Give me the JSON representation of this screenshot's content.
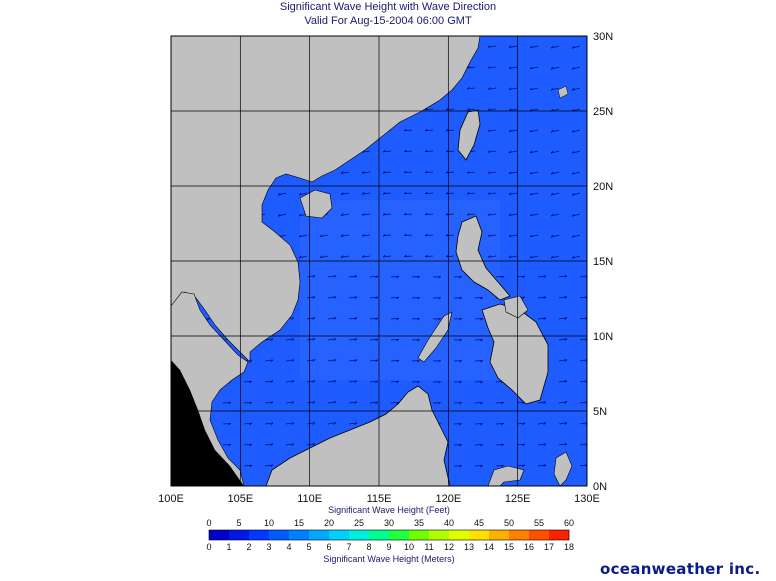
{
  "header": {
    "title": "Significant Wave Height with Wave Direction",
    "subtitle": "Valid For Aug-15-2004 06:00 GMT"
  },
  "map": {
    "lon_ticks": [
      "100E",
      "105E",
      "110E",
      "115E",
      "120E",
      "125E",
      "130E"
    ],
    "lat_ticks": [
      "30N",
      "25N",
      "20N",
      "15N",
      "10N",
      "5N",
      "0N"
    ],
    "lon_range": [
      100,
      130
    ],
    "lat_range": [
      0,
      30
    ],
    "land_color": "#c0c0c0",
    "sea_color": "#1e5cff",
    "grid_color": "#000000"
  },
  "colorbar": {
    "feet_label": "Significant Wave Height (Feet)",
    "meters_label": "Significant Wave Height (Meters)",
    "feet_ticks": [
      "0",
      "5",
      "10",
      "15",
      "20",
      "25",
      "30",
      "35",
      "40",
      "45",
      "50",
      "55",
      "60"
    ],
    "meter_ticks": [
      "0",
      "1",
      "2",
      "3",
      "4",
      "5",
      "6",
      "7",
      "8",
      "9",
      "10",
      "11",
      "12",
      "13",
      "14",
      "15",
      "16",
      "17",
      "18"
    ],
    "colors": [
      "#0000cc",
      "#0018e6",
      "#0038ff",
      "#005cff",
      "#0080ff",
      "#00a8ff",
      "#00d0ff",
      "#00f0e0",
      "#00ff90",
      "#20ff40",
      "#70ff00",
      "#b0ff00",
      "#e0ff00",
      "#ffe000",
      "#ffb000",
      "#ff8000",
      "#ff5000",
      "#ff2000"
    ]
  },
  "brand": {
    "logo_text": "oceanweather inc."
  }
}
